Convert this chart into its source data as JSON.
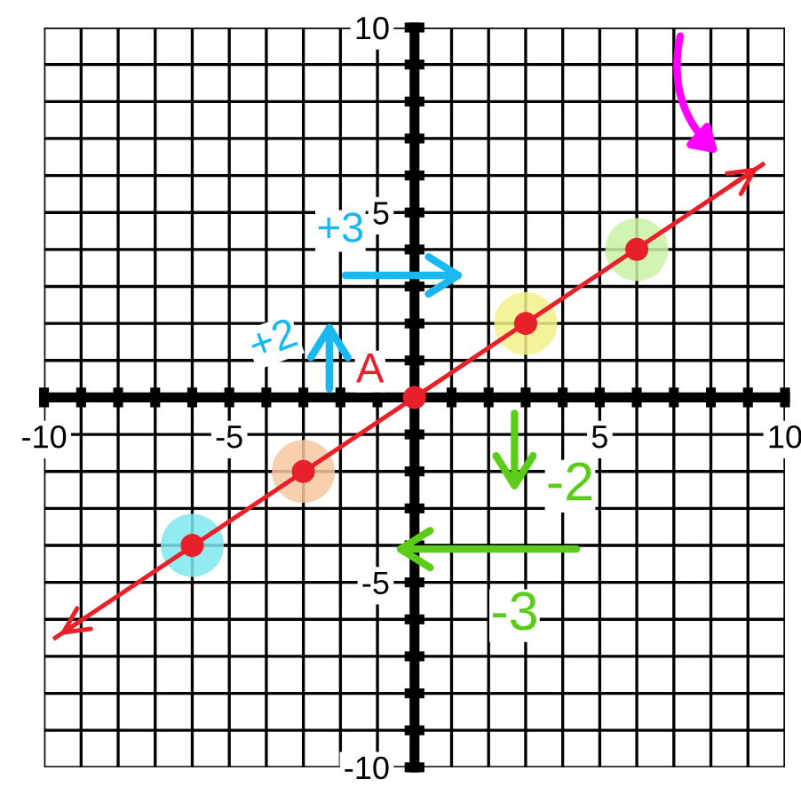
{
  "chart_data": {
    "type": "scatter",
    "series": [
      {
        "marker": "circle",
        "color": "#e8202a",
        "x": [
          -6,
          -3,
          0,
          3,
          6
        ],
        "values": [
          -4,
          -2,
          0,
          2,
          4
        ]
      },
      {
        "type": "line",
        "color": "#e8202a",
        "x": [
          -9.7,
          9.4
        ],
        "values": [
          -6.5,
          6.3
        ]
      }
    ],
    "xlim": [
      -10,
      10
    ],
    "ylim": [
      -10,
      10
    ],
    "xticks": [
      {
        "value": -10,
        "label": "-10"
      },
      {
        "value": -9,
        "label": null
      },
      {
        "value": -8,
        "label": null
      },
      {
        "value": -7,
        "label": null
      },
      {
        "value": -6,
        "label": null
      },
      {
        "value": -5,
        "label": "-5"
      },
      {
        "value": -4,
        "label": null
      },
      {
        "value": -3,
        "label": null
      },
      {
        "value": -2,
        "label": null
      },
      {
        "value": -1,
        "label": null
      },
      {
        "value": 1,
        "label": null
      },
      {
        "value": 2,
        "label": null
      },
      {
        "value": 3,
        "label": null
      },
      {
        "value": 4,
        "label": null
      },
      {
        "value": 5,
        "label": "5"
      },
      {
        "value": 6,
        "label": null
      },
      {
        "value": 7,
        "label": null
      },
      {
        "value": 8,
        "label": null
      },
      {
        "value": 9,
        "label": null
      },
      {
        "value": 10,
        "label": "10"
      }
    ],
    "yticks": [
      {
        "value": -10,
        "label": "-10"
      },
      {
        "value": -9,
        "label": null
      },
      {
        "value": -8,
        "label": null
      },
      {
        "value": -7,
        "label": null
      },
      {
        "value": -6,
        "label": null
      },
      {
        "value": -5,
        "label": "-5"
      },
      {
        "value": -4,
        "label": null
      },
      {
        "value": -3,
        "label": null
      },
      {
        "value": -2,
        "label": null
      },
      {
        "value": -1,
        "label": null
      },
      {
        "value": 1,
        "label": null
      },
      {
        "value": 2,
        "label": null
      },
      {
        "value": 3,
        "label": null
      },
      {
        "value": 4,
        "label": null
      },
      {
        "value": 5,
        "label": "5"
      },
      {
        "value": 6,
        "label": null
      },
      {
        "value": 7,
        "label": null
      },
      {
        "value": 8,
        "label": null
      },
      {
        "value": 9,
        "label": null
      },
      {
        "value": 10,
        "label": "10"
      }
    ],
    "grid": true,
    "annotations": [
      "+3",
      "+2",
      "A",
      "-2",
      "-3"
    ]
  }
}
